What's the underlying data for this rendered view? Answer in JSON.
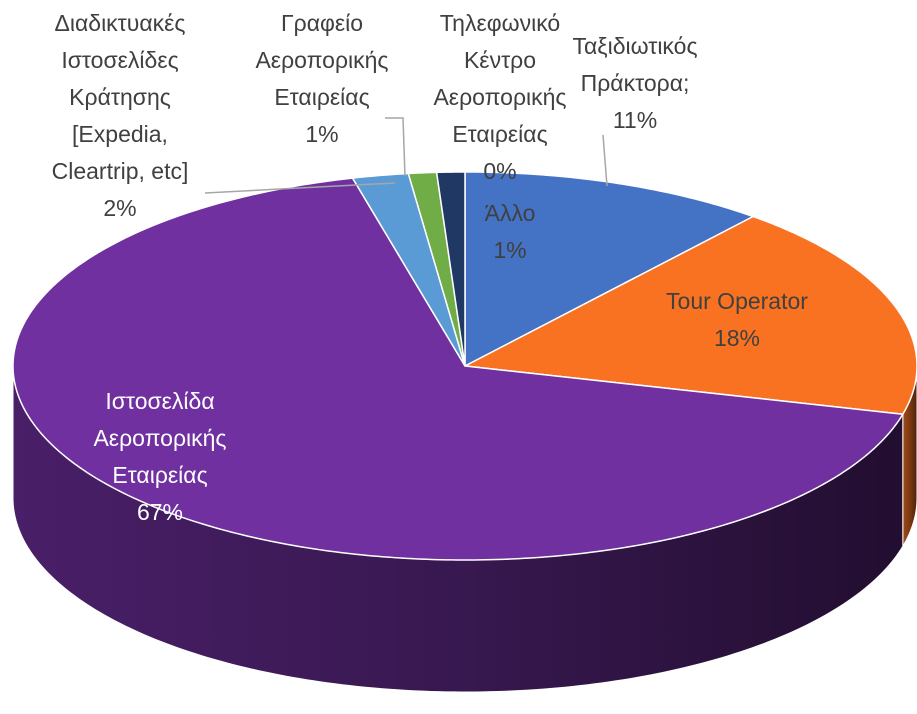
{
  "chart_data": {
    "type": "pie3d",
    "categories": [
      "Ταξιδιωτικός Πράκτορα;",
      "Tour Operator",
      "Τηλεφωνικό Κέντρο Αεροπορικής Εταιρείας",
      "Ιστοσελίδα Αεροπορικής Εταιρείας",
      "Διαδικτυακές Ιστοσελίδες Κράτησης [Expedia, Cleartrip, etc]",
      "Γραφείο Αεροπορικής Εταιρείας",
      "Άλλο"
    ],
    "values": [
      11,
      18,
      0,
      67,
      2,
      1,
      1
    ],
    "value_labels": [
      "11%",
      "18%",
      "0%",
      "67%",
      "2%",
      "1%",
      "1%"
    ],
    "colors": [
      "#4472C4",
      "#F87222",
      "#A5A5A5",
      "#7030A0",
      "#5B9BD5",
      "#70AD47",
      "#203864"
    ]
  }
}
